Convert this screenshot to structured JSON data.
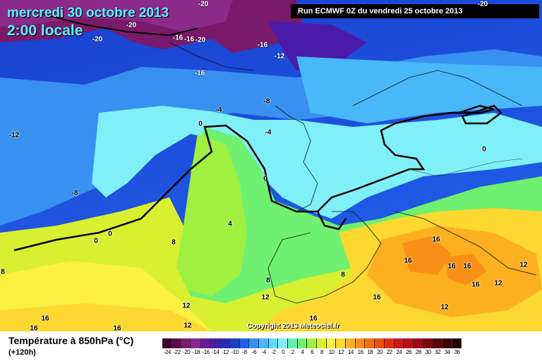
{
  "header": {
    "date": "mercredi 30 octobre 2013",
    "time": "2:00 locale",
    "run": "Run ECMWF 0Z du vendredi 25 octobre 2013"
  },
  "footer": {
    "variable": "Température à 850hPa (°C)",
    "lead": "(+120h)",
    "copyright": "Copyright 2013 Meteociel.fr"
  },
  "legend": {
    "ticks": [
      "-24",
      "-22",
      "-20",
      "-18",
      "-16",
      "-14",
      "-12",
      "-10",
      "-8",
      "-6",
      "-4",
      "-2",
      "0",
      "2",
      "4",
      "6",
      "8",
      "10",
      "12",
      "14",
      "16",
      "18",
      "20",
      "22",
      "24",
      "26",
      "28",
      "30",
      "32",
      "34",
      "36"
    ],
    "colors": [
      "#3a0028",
      "#5a0a4a",
      "#7a1a6a",
      "#8c2a8a",
      "#6a1a9a",
      "#4a1aaa",
      "#2a2ab8",
      "#1a40d0",
      "#2060e8",
      "#3890f0",
      "#48b8f8",
      "#60d8fc",
      "#80f0f8",
      "#60f0b0",
      "#70f070",
      "#a0f040",
      "#d8f030",
      "#fcf040",
      "#fcd830",
      "#fcb020",
      "#f89018",
      "#f07010",
      "#e85010",
      "#e03010",
      "#d01818",
      "#b81018",
      "#a00818",
      "#800410",
      "#600008",
      "#400004",
      "#200000"
    ]
  },
  "map_labels": [
    {
      "text": "-20"
    },
    {
      "text": "-20"
    },
    {
      "text": "-20"
    },
    {
      "text": "-16"
    },
    {
      "text": "-16"
    },
    {
      "text": "-20"
    },
    {
      "text": "-16"
    },
    {
      "text": "-12"
    },
    {
      "text": "-16"
    },
    {
      "text": "-20"
    },
    {
      "text": "-12"
    },
    {
      "text": "-8"
    },
    {
      "text": "-8"
    },
    {
      "text": "-4"
    },
    {
      "text": "-4"
    },
    {
      "text": "0"
    },
    {
      "text": "0"
    },
    {
      "text": "0"
    },
    {
      "text": "0"
    },
    {
      "text": "0"
    },
    {
      "text": "4"
    },
    {
      "text": "8"
    },
    {
      "text": "8"
    },
    {
      "text": "8"
    },
    {
      "text": "8"
    },
    {
      "text": "12"
    },
    {
      "text": "12"
    },
    {
      "text": "12"
    },
    {
      "text": "12"
    },
    {
      "text": "12"
    },
    {
      "text": "16"
    },
    {
      "text": "16"
    },
    {
      "text": "16"
    },
    {
      "text": "16"
    },
    {
      "text": "16"
    },
    {
      "text": "16"
    },
    {
      "text": "16"
    },
    {
      "text": "16"
    },
    {
      "text": "16"
    },
    {
      "text": "12"
    },
    {
      "text": "16"
    }
  ]
}
